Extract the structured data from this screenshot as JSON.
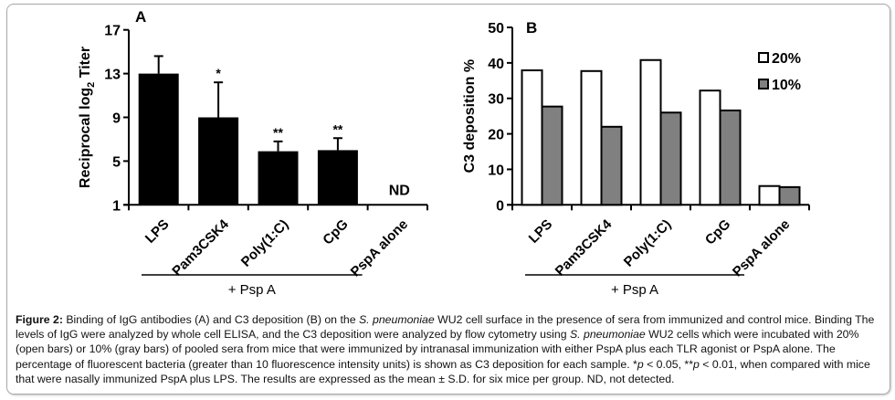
{
  "chart_data": [
    {
      "panel": "A",
      "type": "bar",
      "title": "",
      "xlabel": "",
      "ylabel": "Reciprocal log2 Titer",
      "ylabel_main": "Reciprocal log",
      "ylabel_sub": "2",
      "ylabel_tail": " Titer",
      "ylim": [
        1,
        17
      ],
      "yticks": [
        1,
        5,
        9,
        13,
        17
      ],
      "categories": [
        "LPS",
        "Pam3CSK4",
        "Poly(1:C)",
        "CpG",
        "PspA alone"
      ],
      "values": [
        13.0,
        9.0,
        5.9,
        6.0,
        null
      ],
      "error_upper": [
        14.6,
        12.2,
        6.8,
        7.1,
        null
      ],
      "annotations": [
        "",
        "*",
        "**",
        "**",
        "ND"
      ],
      "bar_color": "#000000",
      "group_bracket": {
        "label": "+ Psp A",
        "categories": [
          "LPS",
          "Pam3CSK4",
          "Poly(1:C)",
          "CpG"
        ]
      },
      "grid": false
    },
    {
      "panel": "B",
      "type": "bar",
      "title": "",
      "xlabel": "",
      "ylabel": "C3 deposition %",
      "ylim": [
        0,
        50
      ],
      "yticks": [
        0,
        10,
        20,
        30,
        40,
        50
      ],
      "categories": [
        "LPS",
        "Pam3CSK4",
        "Poly(1:C)",
        "CpG",
        "PspA alone"
      ],
      "series": [
        {
          "name": "20%",
          "color": "#ffffff",
          "values": [
            37.9,
            37.7,
            40.8,
            32.2,
            5.3
          ]
        },
        {
          "name": "10%",
          "color": "#808080",
          "values": [
            27.7,
            22.0,
            26.0,
            26.6,
            5.0
          ]
        }
      ],
      "legend": "top-right",
      "group_bracket": {
        "label": "+ Psp A",
        "categories": [
          "LPS",
          "Pam3CSK4",
          "Poly(1:C)",
          "CpG"
        ]
      },
      "grid": false
    }
  ],
  "caption": {
    "figure_label": "Figure 2:",
    "parts": [
      {
        "t": " Binding of IgG antibodies (A) and C3 deposition (B) on the "
      },
      {
        "t": "S. pneumoniae",
        "i": true
      },
      {
        "t": " WU2 cell surface in the presence of sera from immunized and control mice. Binding The levels of IgG were analyzed by whole cell ELISA, and the C3 deposition were analyzed by flow cytometry using "
      },
      {
        "t": "S. pneumoniae",
        "i": true
      },
      {
        "t": " WU2 cells which were incubated with 20% (open bars) or 10% (gray bars) of pooled sera from mice that were immunized by intranasal immunization with either PspA plus each TLR agonist or PspA alone. The percentage of fluorescent bacteria (greater than 10 fluorescence intensity units) is shown as C3 deposition for each sample. *"
      },
      {
        "t": "p",
        "i": true
      },
      {
        "t": " < 0.05, **"
      },
      {
        "t": "p",
        "i": true
      },
      {
        "t": " < 0.01, when compared with mice that were nasally immunized PspA plus LPS. The results are expressed as the mean ± S.D. for six mice per group. ND, not detected."
      }
    ]
  }
}
